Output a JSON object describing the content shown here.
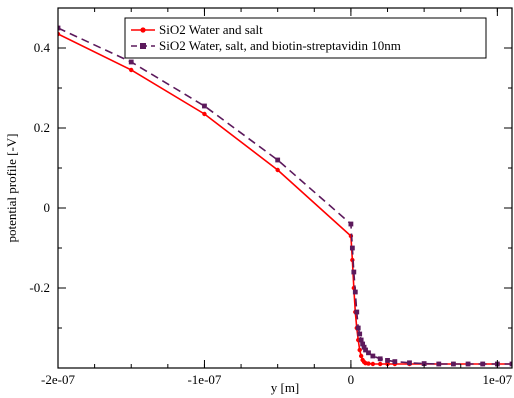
{
  "chart_data": {
    "type": "line",
    "title": "",
    "xlabel": "y [m]",
    "ylabel": "potential profile [-V]",
    "xlim": [
      -2e-07,
      1.1e-07
    ],
    "ylim": [
      -0.4,
      0.5
    ],
    "x_ticks": [
      {
        "value": -2e-07,
        "label": "-2e-07"
      },
      {
        "value": -1e-07,
        "label": "-1e-07"
      },
      {
        "value": 0,
        "label": "0"
      },
      {
        "value": 1e-07,
        "label": "1e-07"
      }
    ],
    "y_ticks": [
      {
        "value": 0.4,
        "label": "0.4"
      },
      {
        "value": 0.2,
        "label": "0.2"
      },
      {
        "value": 0,
        "label": "0"
      },
      {
        "value": -0.2,
        "label": "-0.2"
      }
    ],
    "grid": false,
    "legend_position": "top-right",
    "series": [
      {
        "name": "SiO2 Water and salt",
        "color": "#ff0000",
        "line_style": "solid",
        "marker": "circle",
        "x": [
          -2e-07,
          -1.5e-07,
          -1e-07,
          -5e-08,
          0,
          1e-09,
          2e-09,
          3e-09,
          4e-09,
          5e-09,
          6e-09,
          7e-09,
          8e-09,
          9e-09,
          1e-08,
          1.2e-08,
          1.5e-08,
          2e-08,
          2.5e-08,
          3e-08,
          4e-08,
          5e-08,
          6e-08,
          7e-08,
          8e-08,
          9e-08,
          1e-07,
          1.1e-07
        ],
        "y": [
          0.435,
          0.345,
          0.235,
          0.095,
          -0.07,
          -0.13,
          -0.2,
          -0.26,
          -0.3,
          -0.33,
          -0.355,
          -0.37,
          -0.38,
          -0.385,
          -0.388,
          -0.389,
          -0.39,
          -0.39,
          -0.39,
          -0.39,
          -0.39,
          -0.39,
          -0.39,
          -0.39,
          -0.39,
          -0.39,
          -0.39,
          -0.39
        ]
      },
      {
        "name": "SiO2 Water, salt, and biotin-streptavidin 10nm",
        "color": "#5c1a5c",
        "line_style": "dashed",
        "marker": "square",
        "x": [
          -2e-07,
          -1.5e-07,
          -1e-07,
          -5e-08,
          0,
          1e-09,
          2e-09,
          3e-09,
          4e-09,
          5e-09,
          6e-09,
          7e-09,
          8e-09,
          9e-09,
          1e-08,
          1.2e-08,
          1.5e-08,
          2e-08,
          2.5e-08,
          3e-08,
          4e-08,
          5e-08,
          6e-08,
          7e-08,
          8e-08,
          9e-08,
          1e-07,
          1.1e-07
        ],
        "y": [
          0.45,
          0.365,
          0.255,
          0.12,
          -0.04,
          -0.1,
          -0.16,
          -0.21,
          -0.26,
          -0.3,
          -0.315,
          -0.33,
          -0.34,
          -0.348,
          -0.355,
          -0.362,
          -0.37,
          -0.377,
          -0.381,
          -0.384,
          -0.387,
          -0.389,
          -0.39,
          -0.39,
          -0.39,
          -0.39,
          -0.39,
          -0.39
        ]
      }
    ]
  }
}
